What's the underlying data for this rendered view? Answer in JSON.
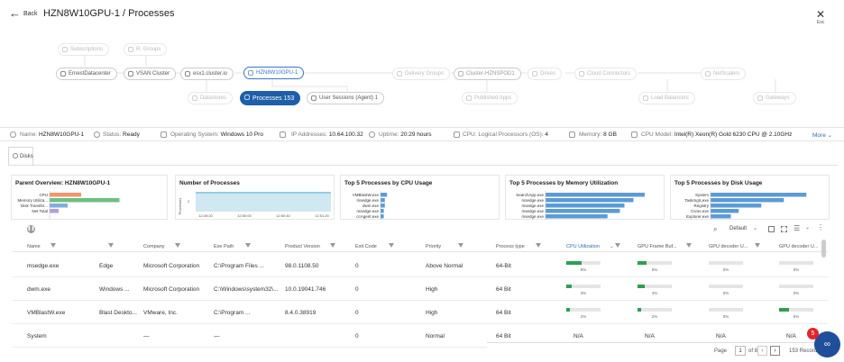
{
  "header": {
    "back_label": "Back",
    "title": "HZN8W10GPU-1 / Processes",
    "close_hint": "Esc"
  },
  "map": {
    "nodes": {
      "subscriptions": "Subscriptions",
      "r_groups": "R. Groups",
      "ernest_dc": "ErnestDatacenter",
      "vsan_cluster": "VSAN Cluster",
      "esx_host": "esx1.cluster.io",
      "vm": "HZN8W10GPU-1",
      "delivery_groups": "Delivery Groups",
      "cluster": "Cluster-HZNSPOD1",
      "drives": "Drives",
      "cloud_connectors": "Cloud Connectors",
      "netscalers": "NetScalers",
      "datastores": "Datastores",
      "processes": "Processes 153",
      "user_sessions": "User Sessions (Agent) 1",
      "published_apps": "Published Apps",
      "load_balancers": "Load Balancers",
      "gateways": "Gateways"
    }
  },
  "props": {
    "name_l": "Name:",
    "name_v": "HZN8W10GPU-1",
    "status_l": "Status:",
    "status_v": "Ready",
    "os_l": "Operating System:",
    "os_v": "Windows 10 Pro",
    "ip_l": "IP Addresses:",
    "ip_v": "10.64.100.32",
    "uptime_l": "Uptime:",
    "uptime_v": "20:29 hours",
    "cpu_l": "CPU: Logical Processors (OS):",
    "cpu_v": "4",
    "mem_l": "Memory:",
    "mem_v": "8 GB",
    "model_l": "CPU Model:",
    "model_v": "Intel(R) Xeon(R) Gold 6230 CPU @ 2.10GHz",
    "more": "More"
  },
  "tabs": {
    "disks": "Disks"
  },
  "cards": {
    "overview": {
      "title": "Parent Overview: HZN8W10GPU-1",
      "labels": [
        "CPU",
        "Memory Utiliza...",
        "Disk Transfer...",
        "Net Total"
      ],
      "colors": [
        "#f2946c",
        "#6cc082",
        "#7faedb",
        "#b39ddb"
      ],
      "values": [
        0.28,
        0.62,
        0.16,
        0.08
      ]
    },
    "procs": {
      "title": "Number of Processes",
      "ylabel": "Processes",
      "xticks": [
        "12:49:20",
        "12:50:00",
        "12:50:40",
        "12:51:20"
      ],
      "ytick": "2"
    },
    "cpu": {
      "title": "Top 5 Processes by CPU Usage",
      "labels": [
        "VMBlastW.exe",
        "msedge.exe",
        "dwm.exe",
        "msedge.exe",
        "ccAgent.exe"
      ],
      "values": [
        0.06,
        0.04,
        0.04,
        0.03,
        0.03
      ]
    },
    "mem": {
      "title": "Top 5 Processes by Memory Utilization",
      "labels": [
        "SearchApp.exe",
        "msedge.exe",
        "msedge.exe",
        "msedge.exe",
        "msedge.exe"
      ],
      "values": [
        0.88,
        0.78,
        0.7,
        0.66,
        0.55
      ]
    },
    "disk": {
      "title": "Top 5 Processes by Disk Usage",
      "labels": [
        "System",
        "TaskmgrLexe",
        "Registry",
        "Csrss.exe",
        "Explorer.exe"
      ],
      "values": [
        0.85,
        0.65,
        0.45,
        0.25,
        0.18
      ]
    }
  },
  "toolbar": {
    "view": "Default"
  },
  "table": {
    "headers": [
      "Name",
      "Company",
      "Exe Path",
      "Product Version",
      "Exit Code",
      "Priority",
      "Process type",
      "CPU Utilization",
      "GPU Frame Buf...",
      "GPU decoder U...",
      "GPU decoder U..."
    ],
    "rows": [
      {
        "name": "msedge.exe",
        "desc": "Edge",
        "company": "Microsoft Corporation",
        "path": "C:\\Program Files ...",
        "version": "98.0.1108.50",
        "exit": "0",
        "priority": "Above Normal",
        "type": "64-Bit",
        "cpu": "9%",
        "cpu_v": 0.09,
        "fb": "5%",
        "fb_v": 0.05,
        "dec": "0%",
        "dec_v": 0,
        "dec2": "0%",
        "dec2_v": 0
      },
      {
        "name": "dwm.exe",
        "desc": "Windows ...",
        "company": "Microsoft Corporation",
        "path": "C:\\Windows\\system32\\...",
        "version": "10.0.19041.746",
        "exit": "0",
        "priority": "High",
        "type": "64 Bit",
        "cpu": "3%",
        "cpu_v": 0.03,
        "fb": "4%",
        "fb_v": 0.04,
        "dec": "0%",
        "dec_v": 0,
        "dec2": "0%",
        "dec2_v": 0
      },
      {
        "name": "VMBlastW.exe",
        "desc": "Blast Deskto...",
        "company": "VMware, Inc.",
        "path": "C:\\Program ...",
        "version": "8.4.0.38919",
        "exit": "0",
        "priority": "High",
        "type": "64 Bit",
        "cpu": "2%",
        "cpu_v": 0.02,
        "fb": "2%",
        "fb_v": 0.02,
        "dec": "0%",
        "dec_v": 0,
        "dec2": "6%",
        "dec2_v": 0.06
      },
      {
        "name": "System",
        "desc": "",
        "company": "—",
        "path": "—",
        "version": "",
        "exit": "0",
        "priority": "Normal",
        "type": "64 Bit",
        "cpu": "N/A",
        "fb": "N/A",
        "dec": "N/A",
        "dec2": "N/A"
      }
    ]
  },
  "pager": {
    "page_label": "Page",
    "page": "1",
    "of_label": "of 8",
    "records": "153 Records"
  },
  "fab": {
    "badge": "5"
  },
  "colors": {
    "accent": "#1f5ea8",
    "bar_green": "#2e9e52",
    "chart_blue": "#5b9bd5"
  }
}
